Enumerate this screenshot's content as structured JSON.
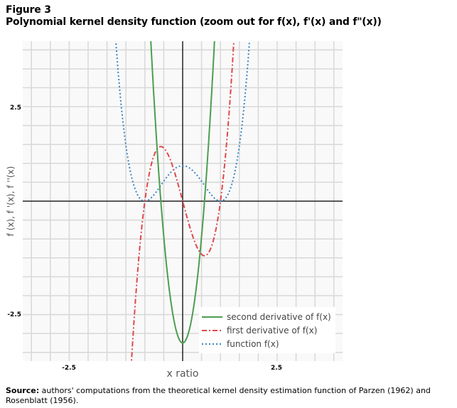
{
  "figure_label": "Figure 3",
  "figure_title": "Polynomial kernel density function  (zoom out for f(x), f'(x) and f\"(x))",
  "source_label": "Source:",
  "source_text": " authors' computations from the theoretical kernel density estimation function of Parzen (1962) and Rosenblatt (1956).",
  "chart_data": {
    "type": "line",
    "title": "Polynomial kernel density function  (zoom out for f(x), f'(x) and f\"(x))",
    "xlabel": "x ratio",
    "ylabel": "f (x), f '(x), f ''(x)",
    "xlim": [
      -4.23,
      4.23
    ],
    "ylim": [
      -4.23,
      4.23
    ],
    "grid": true,
    "grid_step": 0.5,
    "legend_position": "bottom-right",
    "x_ticks": [
      {
        "value": -2.5,
        "label": "-2.5"
      },
      {
        "value": 2.5,
        "label": "2.5"
      }
    ],
    "y_ticks": [
      {
        "value": 2.5,
        "label": "2.5"
      },
      {
        "value": -2.5,
        "label": "-2.5"
      }
    ],
    "series": [
      {
        "name": "second derivative of f(x)",
        "color": "#4c9e50",
        "style": "solid",
        "formula": "-(15/4)(1-3x^2)",
        "poly_coeffs": [
          -3.75,
          0,
          11.25
        ]
      },
      {
        "name": "first derivative of f(x)",
        "color": "#e0474c",
        "style": "dashdot",
        "formula": "-(15/4)x(1-x^2)",
        "poly_coeffs": [
          0,
          -3.75,
          0,
          3.75
        ]
      },
      {
        "name": "function f(x)",
        "color": "#3a86c4",
        "style": "dotted",
        "formula": "(15/16)(1-x^2)^2",
        "poly_coeffs": [
          0.9375,
          0,
          -1.875,
          0,
          0.9375
        ]
      }
    ],
    "key_points": {
      "f_max": [
        0,
        0.9375
      ],
      "f_zeros": [
        -1,
        1
      ],
      "f1_min": [
        0.577,
        -1.443
      ],
      "f1_max": [
        -0.577,
        1.443
      ],
      "f2_min": [
        0,
        -3.75
      ]
    }
  }
}
